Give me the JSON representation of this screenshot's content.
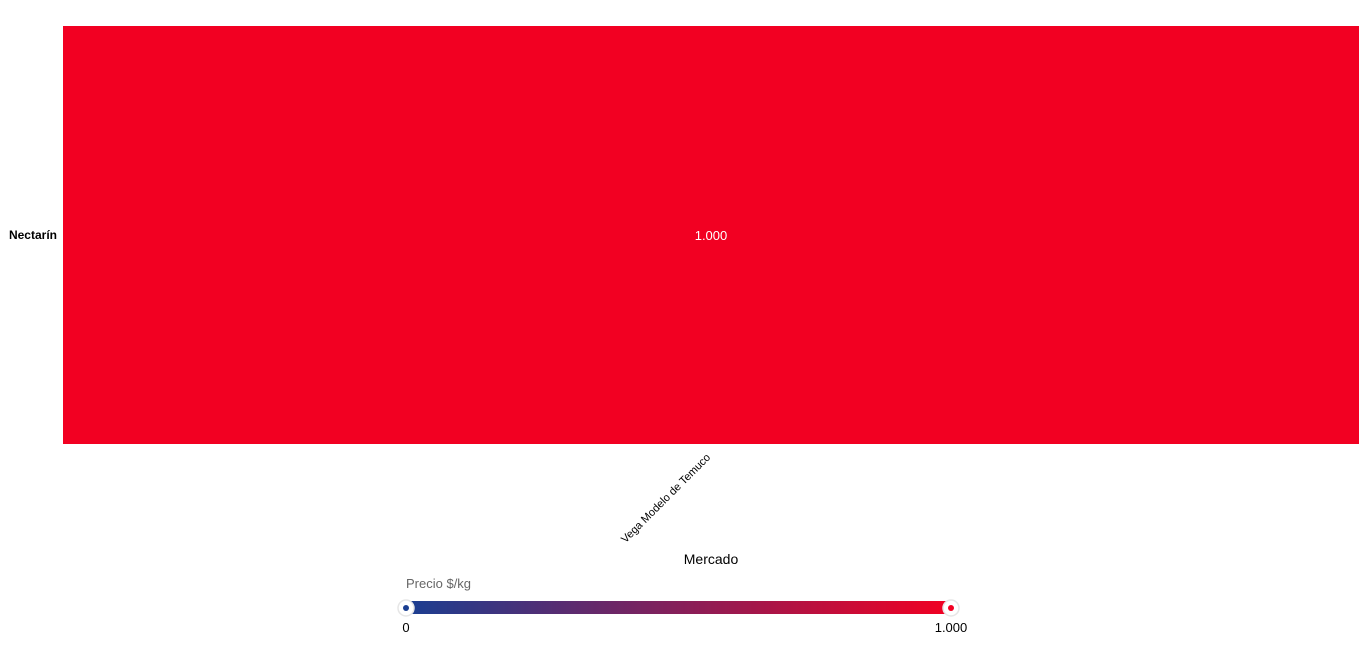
{
  "chart_data": {
    "type": "heatmap",
    "rows": [
      "Nectarín"
    ],
    "columns": [
      "Vega Modelo de Temuco"
    ],
    "values": [
      [
        1000
      ]
    ],
    "cell_labels": [
      [
        "1.000"
      ]
    ],
    "xlabel": "Mercado",
    "ylabel": "",
    "color_scale": {
      "title": "Precio $/kg",
      "min": 0,
      "max": 1000,
      "min_label": "0",
      "max_label": "1.000",
      "min_color": "#1a3e91",
      "max_color": "#f20022"
    }
  }
}
